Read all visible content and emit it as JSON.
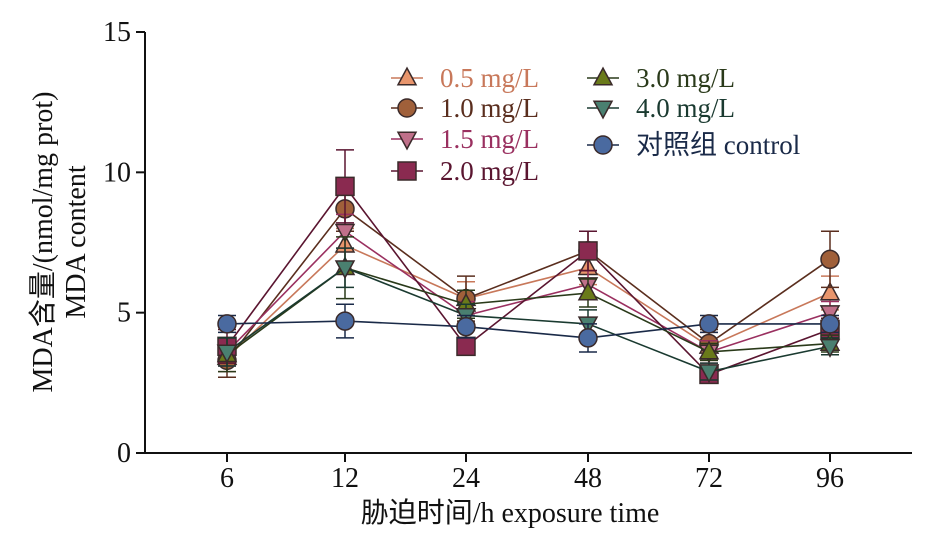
{
  "chart_data": {
    "type": "line",
    "xlabel": "胁迫时间/h exposure time",
    "ylabel_line1": "MDA含量/(nmol/mg prot)",
    "ylabel_line2": "MDA content",
    "x": [
      "6",
      "12",
      "24",
      "48",
      "72",
      "96"
    ],
    "ylim": [
      0,
      15
    ],
    "yticks": [
      0,
      5,
      10,
      15
    ],
    "grid": false,
    "legend_position": "top",
    "series": [
      {
        "name": "0.5 mg/L",
        "values": [
          3.4,
          7.4,
          5.5,
          6.6,
          3.8,
          5.7
        ],
        "err": [
          0.5,
          0.6,
          0.6,
          0.6,
          0.5,
          0.6
        ],
        "color": "#e8956c",
        "marker": "triangle-up",
        "label_color": "#c8785a"
      },
      {
        "name": "1.0 mg/L",
        "values": [
          3.3,
          8.7,
          5.5,
          7.2,
          3.9,
          6.9
        ],
        "err": [
          0.6,
          0.8,
          0.8,
          0.7,
          0.5,
          1.0
        ],
        "color": "#a0603a",
        "marker": "circle",
        "label_color": "#5a2e1e"
      },
      {
        "name": "1.5 mg/L",
        "values": [
          3.6,
          7.9,
          4.9,
          6.0,
          3.6,
          5.0
        ],
        "err": [
          0.5,
          0.6,
          0.5,
          0.5,
          0.4,
          0.4
        ],
        "color": "#c0708a",
        "marker": "triangle-down",
        "label_color": "#9a3060"
      },
      {
        "name": "2.0 mg/L",
        "values": [
          3.8,
          9.5,
          3.8,
          7.2,
          2.8,
          4.4
        ],
        "err": [
          0.6,
          1.3,
          0.3,
          0.7,
          0.3,
          0.4
        ],
        "color": "#8a2a50",
        "marker": "square",
        "label_color": "#5a1530"
      },
      {
        "name": "3.0 mg/L",
        "values": [
          3.5,
          6.6,
          5.3,
          5.7,
          3.6,
          3.9
        ],
        "err": [
          0.6,
          1.1,
          0.5,
          0.5,
          0.3,
          0.3
        ],
        "color": "#6a7a1a",
        "marker": "triangle-up",
        "label_color": "#2a3a1a"
      },
      {
        "name": "4.0 mg/L",
        "values": [
          3.6,
          6.6,
          4.9,
          4.6,
          2.9,
          3.8
        ],
        "err": [
          0.5,
          0.7,
          0.4,
          0.5,
          0.3,
          0.3
        ],
        "color": "#4a8070",
        "marker": "triangle-down",
        "label_color": "#1a3a30"
      },
      {
        "name": "对照组 control",
        "values": [
          4.6,
          4.7,
          4.5,
          4.1,
          4.6,
          4.6
        ],
        "err": [
          0.3,
          0.6,
          0.4,
          0.5,
          0.3,
          0.3
        ],
        "color": "#4a6aa0",
        "marker": "circle",
        "label_color": "#1a2a48"
      }
    ]
  }
}
